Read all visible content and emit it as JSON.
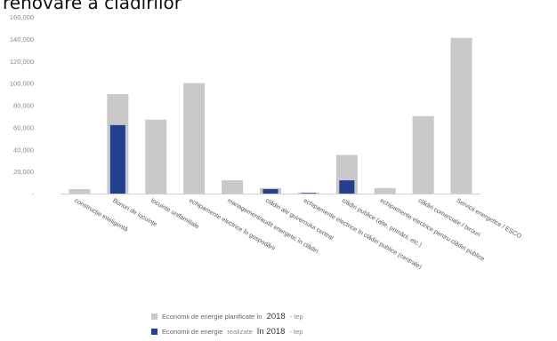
{
  "heading": "renovare a cladirilor",
  "colors": {
    "planned": "#c9c9c9",
    "realized": "#233f8d",
    "axis": "#d0d0d0"
  },
  "legend": {
    "planned": {
      "text": "Economii de energie planificate în",
      "year": "2018",
      "unit": "- tep"
    },
    "realized": {
      "text": "Economii de energie",
      "sub": "realizate",
      "year": "în 2018",
      "unit": "- tep"
    }
  },
  "chart_data": {
    "type": "bar",
    "title": "",
    "xlabel": "",
    "ylabel": "",
    "ylim": [
      0,
      160000
    ],
    "yticks": [
      0,
      20000,
      40000,
      60000,
      80000,
      100000,
      120000,
      140000,
      160000
    ],
    "ytick_labels": [
      "-",
      "20,000",
      "40,000",
      "60,000",
      "80,000",
      "100,000",
      "120,000",
      "140,000",
      "160,000"
    ],
    "grid": false,
    "legend_position": "bottom",
    "categories": [
      "construcție inteligentă",
      "Bonuri de locuințe",
      "locuințe unifamiliale",
      "echipamente electrice în gospodării",
      "management/audit energetic în clădiri",
      "clădiri ale guvernului central",
      "echipamente electrice în clădiri publice (centrale)",
      "clădiri publice (alte, primării, etc.)",
      "echipamente electrice pentru clădiri publice",
      "clădiri comerciale / birouri",
      "Servicii energetice / ESCO"
    ],
    "series": [
      {
        "name": "Economii de energie planificate în 2018 - tep",
        "values": [
          4000,
          90000,
          67000,
          100000,
          12000,
          5000,
          1000,
          35000,
          5000,
          70000,
          141000
        ]
      },
      {
        "name": "Economii de energie realizate în 2018 - tep",
        "values": [
          0,
          62000,
          0,
          0,
          0,
          4000,
          500,
          12000,
          0,
          0,
          0
        ]
      }
    ]
  }
}
